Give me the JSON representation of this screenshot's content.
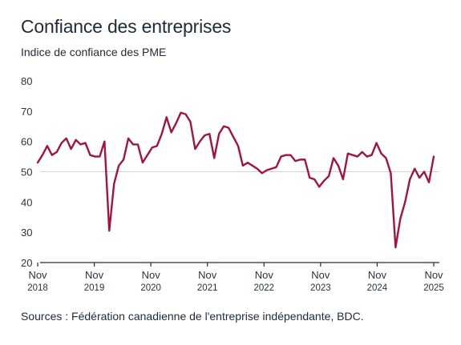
{
  "chart_data": {
    "type": "line",
    "title": "Confiance des entreprises",
    "subtitle": "Indice de confiance des PME",
    "source": "Sources : Fédération canadienne de l'entreprise indépendante, BDC.",
    "ylim": [
      20,
      80
    ],
    "yticks": [
      20,
      30,
      40,
      50,
      60,
      70,
      80
    ],
    "reference_line": 50,
    "x_start": "2018-11",
    "x_end": "2025-11",
    "xticks": [
      {
        "month": "Nov",
        "year": "2018"
      },
      {
        "month": "Nov",
        "year": "2019"
      },
      {
        "month": "Nov",
        "year": "2020"
      },
      {
        "month": "Nov",
        "year": "2021"
      },
      {
        "month": "Nov",
        "year": "2022"
      },
      {
        "month": "Nov",
        "year": "2023"
      },
      {
        "month": "Nov",
        "year": "2024"
      },
      {
        "month": "Nov",
        "year": "2025"
      }
    ],
    "line_color": "#a3143a",
    "series": [
      {
        "values": [
          53.0,
          55.5,
          58.5,
          55.5,
          56.5,
          59.5,
          61.0,
          57.5,
          60.5,
          59.0,
          59.5,
          55.5,
          55.0,
          55.0,
          60.0,
          30.5,
          46.0,
          52.0,
          54.0,
          61.0,
          59.0,
          59.0,
          53.0,
          55.5,
          58.0,
          58.5,
          62.5,
          68.0,
          63.0,
          66.0,
          69.5,
          69.0,
          66.5,
          57.5,
          60.0,
          62.0,
          62.5,
          54.5,
          62.5,
          65.0,
          64.5,
          61.5,
          58.5,
          52.0,
          53.0,
          52.0,
          51.0,
          49.5,
          50.5,
          51.0,
          51.5,
          55.0,
          55.5,
          55.5,
          53.5,
          54.0,
          54.0,
          48.0,
          47.5,
          45.0,
          47.0,
          48.5,
          54.5,
          52.0,
          47.5,
          56.0,
          55.5,
          55.0,
          56.5,
          55.0,
          55.5,
          59.5,
          56.0,
          54.5,
          49.5,
          25.0,
          34.5,
          40.0,
          47.5,
          51.0,
          48.0,
          50.0,
          46.5,
          55.0
        ]
      }
    ],
    "grid": false
  }
}
